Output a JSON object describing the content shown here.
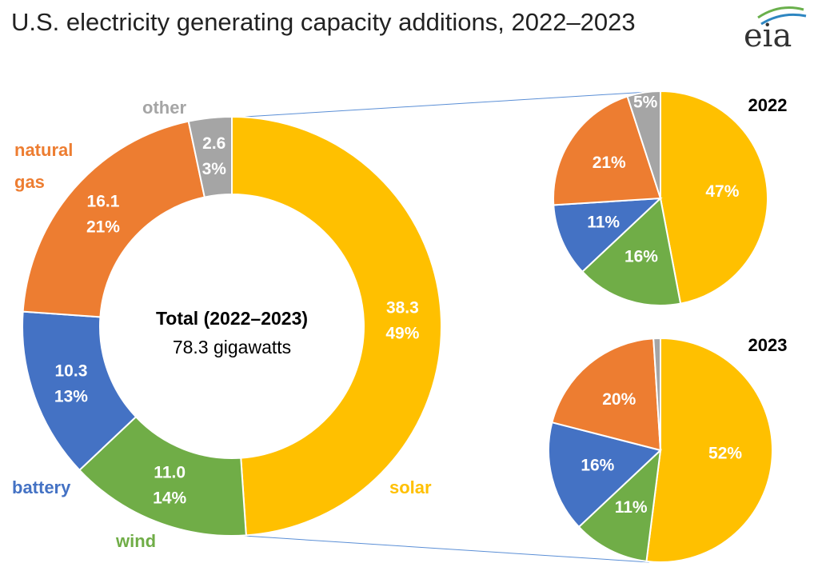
{
  "title": "U.S. electricity generating capacity additions, 2022–2023",
  "logo": "eia",
  "chart_data": [
    {
      "type": "donut",
      "categories": [
        "solar",
        "wind",
        "battery",
        "natural gas",
        "other"
      ],
      "values": [
        38.3,
        11.0,
        10.3,
        16.1,
        2.6
      ],
      "value_labels": [
        "38.3",
        "11.0",
        "10.3",
        "16.1",
        "2.6"
      ],
      "percents": [
        49,
        14,
        13,
        21,
        3
      ],
      "percent_labels": [
        "49%",
        "14%",
        "13%",
        "21%",
        "3%"
      ],
      "colors": [
        "#FFC000",
        "#70AD47",
        "#4472C4",
        "#ED7D31",
        "#A5A5A5"
      ],
      "center_title": "Total (2022–2023)",
      "center_subtitle": "78.3 gigawatts"
    },
    {
      "type": "pie",
      "title": "2022",
      "categories": [
        "solar",
        "wind",
        "battery",
        "natural gas",
        "other"
      ],
      "values": [
        47,
        16,
        11,
        21,
        5
      ],
      "value_labels": [
        "47%",
        "16%",
        "11%",
        "21%",
        "5%"
      ],
      "colors": [
        "#FFC000",
        "#70AD47",
        "#4472C4",
        "#ED7D31",
        "#A5A5A5"
      ]
    },
    {
      "type": "pie",
      "title": "2023",
      "categories": [
        "solar",
        "wind",
        "battery",
        "natural gas",
        "other"
      ],
      "values": [
        52,
        11,
        16,
        20,
        1
      ],
      "value_labels": [
        "52%",
        "11%",
        "16%",
        "20%",
        null
      ],
      "colors": [
        "#FFC000",
        "#70AD47",
        "#4472C4",
        "#ED7D31",
        "#A5A5A5"
      ]
    }
  ]
}
